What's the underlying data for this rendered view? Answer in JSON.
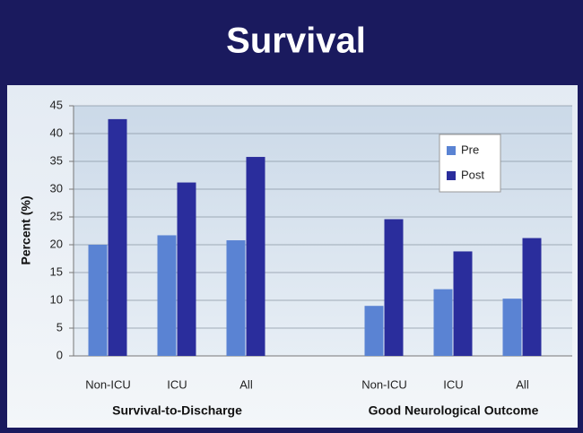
{
  "chart_data": {
    "type": "bar",
    "title": "Survival",
    "y_label": "Percent (%)",
    "categories": [
      "Non-ICU",
      "ICU",
      "All",
      null,
      "Non-ICU",
      "ICU",
      "All"
    ],
    "group_labels": [
      "Survival-to-Discharge",
      "Good Neurological Outcome"
    ],
    "series": [
      {
        "name": "Pre",
        "color": "#5a83d3",
        "values": [
          20,
          21.7,
          20.8,
          null,
          9,
          12,
          10.3
        ]
      },
      {
        "name": "Post",
        "color": "#2a2d9c",
        "values": [
          42.6,
          31.2,
          35.8,
          null,
          24.6,
          18.8,
          21.2
        ]
      }
    ],
    "ylim": [
      0,
      45
    ],
    "yticks": [
      0,
      5,
      10,
      15,
      20,
      25,
      30,
      35,
      40,
      45
    ],
    "grid": true,
    "legend": "upper right"
  }
}
